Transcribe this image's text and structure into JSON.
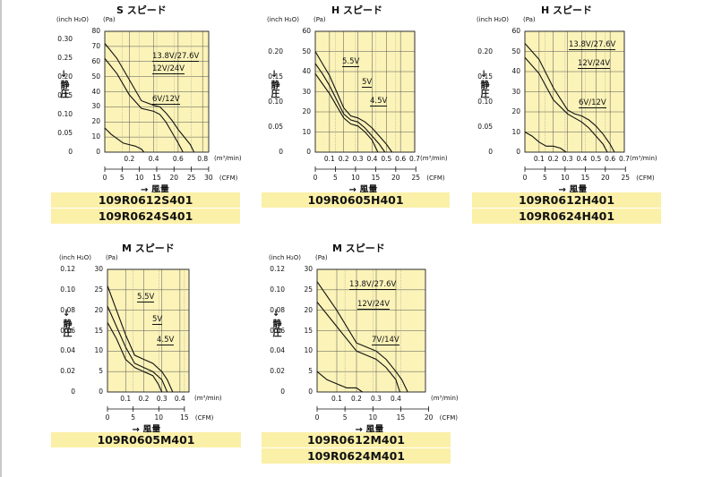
{
  "axis_text": {
    "y_static_pressure": "→ 静圧",
    "x_airflow": "→ 風量",
    "unit_inch": "(inch H₂O)",
    "unit_pa": "(Pa)",
    "unit_m3": "(m³/min)",
    "unit_cfm": "(CFM)"
  },
  "panels": [
    {
      "title": "S スピード",
      "models": [
        "109R0612S401",
        "109R0624S401"
      ],
      "inch_ticks": [
        "0.30",
        "0.25",
        "0.20",
        "0.15",
        "0.10",
        "0.05",
        "0"
      ],
      "pa_ticks": [
        "80",
        "70",
        "60",
        "50",
        "40",
        "30",
        "20",
        "10",
        "0"
      ],
      "m3_ticks": [
        "0.2",
        "0.4",
        "0.6",
        "0.8"
      ],
      "cfm_ticks": [
        "0",
        "5",
        "10",
        "15",
        "20",
        "25",
        "30"
      ]
    },
    {
      "title": "H スピード",
      "models": [
        "109R0605H401"
      ],
      "inch_ticks": [
        "0.20",
        "0.15",
        "0.10",
        "0.05",
        "0"
      ],
      "pa_ticks": [
        "60",
        "50",
        "40",
        "30",
        "20",
        "10",
        "0"
      ],
      "m3_ticks": [
        "0.1",
        "0.2",
        "0.3",
        "0.4",
        "0.5",
        "0.6",
        "0.7"
      ],
      "cfm_ticks": [
        "0",
        "5",
        "10",
        "15",
        "20",
        "25"
      ]
    },
    {
      "title": "H スピード",
      "models": [
        "109R0612H401",
        "109R0624H401"
      ],
      "inch_ticks": [
        "0.20",
        "0.15",
        "0.10",
        "0.05",
        "0"
      ],
      "pa_ticks": [
        "60",
        "50",
        "40",
        "30",
        "20",
        "10",
        "0"
      ],
      "m3_ticks": [
        "0.1",
        "0.2",
        "0.3",
        "0.4",
        "0.5",
        "0.6",
        "0.7"
      ],
      "cfm_ticks": [
        "0",
        "5",
        "10",
        "15",
        "20",
        "25"
      ]
    },
    {
      "title": "M スピード",
      "models": [
        "109R0605M401"
      ],
      "inch_ticks": [
        "0.12",
        "0.10",
        "0.08",
        "0.06",
        "0.04",
        "0.02",
        "0"
      ],
      "pa_ticks": [
        "30",
        "25",
        "20",
        "15",
        "10",
        "5",
        "0"
      ],
      "m3_ticks": [
        "0.1",
        "0.2",
        "0.3",
        "0.4"
      ],
      "cfm_ticks": [
        "0",
        "5",
        "10",
        "15"
      ]
    },
    {
      "title": "M スピード",
      "models": [
        "109R0612M401",
        "109R0624M401"
      ],
      "inch_ticks": [
        "0.12",
        "0.10",
        "0.08",
        "0.06",
        "0.04",
        "0.02",
        "0"
      ],
      "pa_ticks": [
        "30",
        "25",
        "20",
        "15",
        "10",
        "5",
        "0"
      ],
      "m3_ticks": [
        "0.1",
        "0.2",
        "0.3",
        "0.4"
      ],
      "cfm_ticks": [
        "0",
        "5",
        "10",
        "15",
        "20"
      ]
    }
  ],
  "chart_data": [
    {
      "type": "line",
      "title": "S スピード",
      "xlabel": "風量",
      "ylabel": "静圧",
      "x_unit": "m³/min",
      "y_unit": "Pa",
      "xlim": [
        0,
        0.85
      ],
      "ylim": [
        0,
        80
      ],
      "grid": true,
      "series": [
        {
          "name": "13.8V/27.6V",
          "x": [
            0,
            0.1,
            0.2,
            0.3,
            0.4,
            0.45,
            0.5,
            0.55,
            0.6,
            0.65,
            0.7,
            0.73
          ],
          "y": [
            72,
            62,
            48,
            34,
            31,
            30,
            26,
            21,
            15,
            10,
            5,
            0
          ]
        },
        {
          "name": "12V/24V",
          "x": [
            0,
            0.1,
            0.2,
            0.3,
            0.4,
            0.45,
            0.5,
            0.55,
            0.6,
            0.64
          ],
          "y": [
            62,
            52,
            38,
            29,
            27,
            25,
            20,
            13,
            6,
            0
          ]
        },
        {
          "name": "6V/12V",
          "x": [
            0,
            0.05,
            0.1,
            0.15,
            0.2,
            0.25,
            0.3,
            0.32
          ],
          "y": [
            16,
            12,
            9,
            6,
            5,
            4,
            2,
            0
          ]
        }
      ]
    },
    {
      "type": "line",
      "title": "H スピード",
      "xlabel": "風量",
      "ylabel": "静圧",
      "x_unit": "m³/min",
      "y_unit": "Pa",
      "xlim": [
        0,
        0.7
      ],
      "ylim": [
        0,
        60
      ],
      "grid": true,
      "series": [
        {
          "name": "5.5V",
          "x": [
            0,
            0.05,
            0.1,
            0.15,
            0.2,
            0.25,
            0.3,
            0.35,
            0.4,
            0.45,
            0.5,
            0.54
          ],
          "y": [
            50,
            44,
            38,
            30,
            22,
            18,
            17,
            15,
            12,
            8,
            4,
            0
          ]
        },
        {
          "name": "5V",
          "x": [
            0,
            0.05,
            0.1,
            0.15,
            0.2,
            0.25,
            0.3,
            0.35,
            0.4,
            0.45,
            0.49
          ],
          "y": [
            44,
            39,
            33,
            26,
            19,
            16,
            15,
            12,
            8,
            4,
            0
          ]
        },
        {
          "name": "4.5V",
          "x": [
            0,
            0.05,
            0.1,
            0.15,
            0.2,
            0.25,
            0.3,
            0.35,
            0.4,
            0.44
          ],
          "y": [
            39,
            34,
            29,
            23,
            17,
            14,
            13,
            10,
            6,
            0
          ]
        }
      ]
    },
    {
      "type": "line",
      "title": "H スピード",
      "xlabel": "風量",
      "ylabel": "静圧",
      "x_unit": "m³/min",
      "y_unit": "Pa",
      "xlim": [
        0,
        0.7
      ],
      "ylim": [
        0,
        60
      ],
      "grid": true,
      "series": [
        {
          "name": "13.8V/27.6V",
          "x": [
            0,
            0.1,
            0.2,
            0.3,
            0.35,
            0.4,
            0.45,
            0.5,
            0.55,
            0.6,
            0.63
          ],
          "y": [
            54,
            46,
            32,
            21,
            19,
            18,
            16,
            13,
            9,
            4,
            0
          ]
        },
        {
          "name": "12V/24V",
          "x": [
            0,
            0.1,
            0.2,
            0.3,
            0.35,
            0.4,
            0.45,
            0.5,
            0.55,
            0.58
          ],
          "y": [
            47,
            39,
            26,
            19,
            17,
            15,
            12,
            8,
            4,
            0
          ]
        },
        {
          "name": "6V/12V",
          "x": [
            0,
            0.05,
            0.1,
            0.15,
            0.2,
            0.25,
            0.29
          ],
          "y": [
            10,
            8,
            5,
            3,
            3,
            2,
            0
          ]
        }
      ]
    },
    {
      "type": "line",
      "title": "M スピード",
      "xlabel": "風量",
      "ylabel": "静圧",
      "x_unit": "m³/min",
      "y_unit": "Pa",
      "xlim": [
        0,
        0.45
      ],
      "ylim": [
        0,
        30
      ],
      "grid": true,
      "series": [
        {
          "name": "5.5V",
          "x": [
            0,
            0.05,
            0.1,
            0.15,
            0.2,
            0.25,
            0.3,
            0.33,
            0.36
          ],
          "y": [
            26,
            20,
            14,
            9,
            8,
            7,
            5,
            3,
            0
          ]
        },
        {
          "name": "5V",
          "x": [
            0,
            0.05,
            0.1,
            0.15,
            0.2,
            0.25,
            0.3,
            0.33
          ],
          "y": [
            21,
            16,
            11,
            7,
            6,
            5,
            3,
            0
          ]
        },
        {
          "name": "4.5V",
          "x": [
            0,
            0.05,
            0.1,
            0.15,
            0.2,
            0.25,
            0.28,
            0.3
          ],
          "y": [
            17,
            13,
            8,
            6,
            5,
            4,
            2,
            0
          ]
        }
      ]
    },
    {
      "type": "line",
      "title": "M スピード",
      "xlabel": "風量",
      "ylabel": "静圧",
      "x_unit": "m³/min",
      "y_unit": "Pa",
      "xlim": [
        0,
        0.55
      ],
      "ylim": [
        0,
        30
      ],
      "grid": true,
      "series": [
        {
          "name": "13.8V/27.6V",
          "x": [
            0,
            0.1,
            0.2,
            0.25,
            0.3,
            0.35,
            0.4,
            0.43,
            0.46
          ],
          "y": [
            27,
            20,
            12,
            11,
            10,
            8,
            5,
            3,
            0
          ]
        },
        {
          "name": "12V/24V",
          "x": [
            0,
            0.1,
            0.2,
            0.25,
            0.3,
            0.35,
            0.4,
            0.42
          ],
          "y": [
            22,
            16,
            10,
            9,
            8,
            6,
            3,
            0
          ]
        },
        {
          "name": "7V/14V",
          "x": [
            0,
            0.05,
            0.1,
            0.15,
            0.2,
            0.23
          ],
          "y": [
            5,
            3,
            2,
            1,
            1,
            0
          ]
        }
      ]
    }
  ]
}
